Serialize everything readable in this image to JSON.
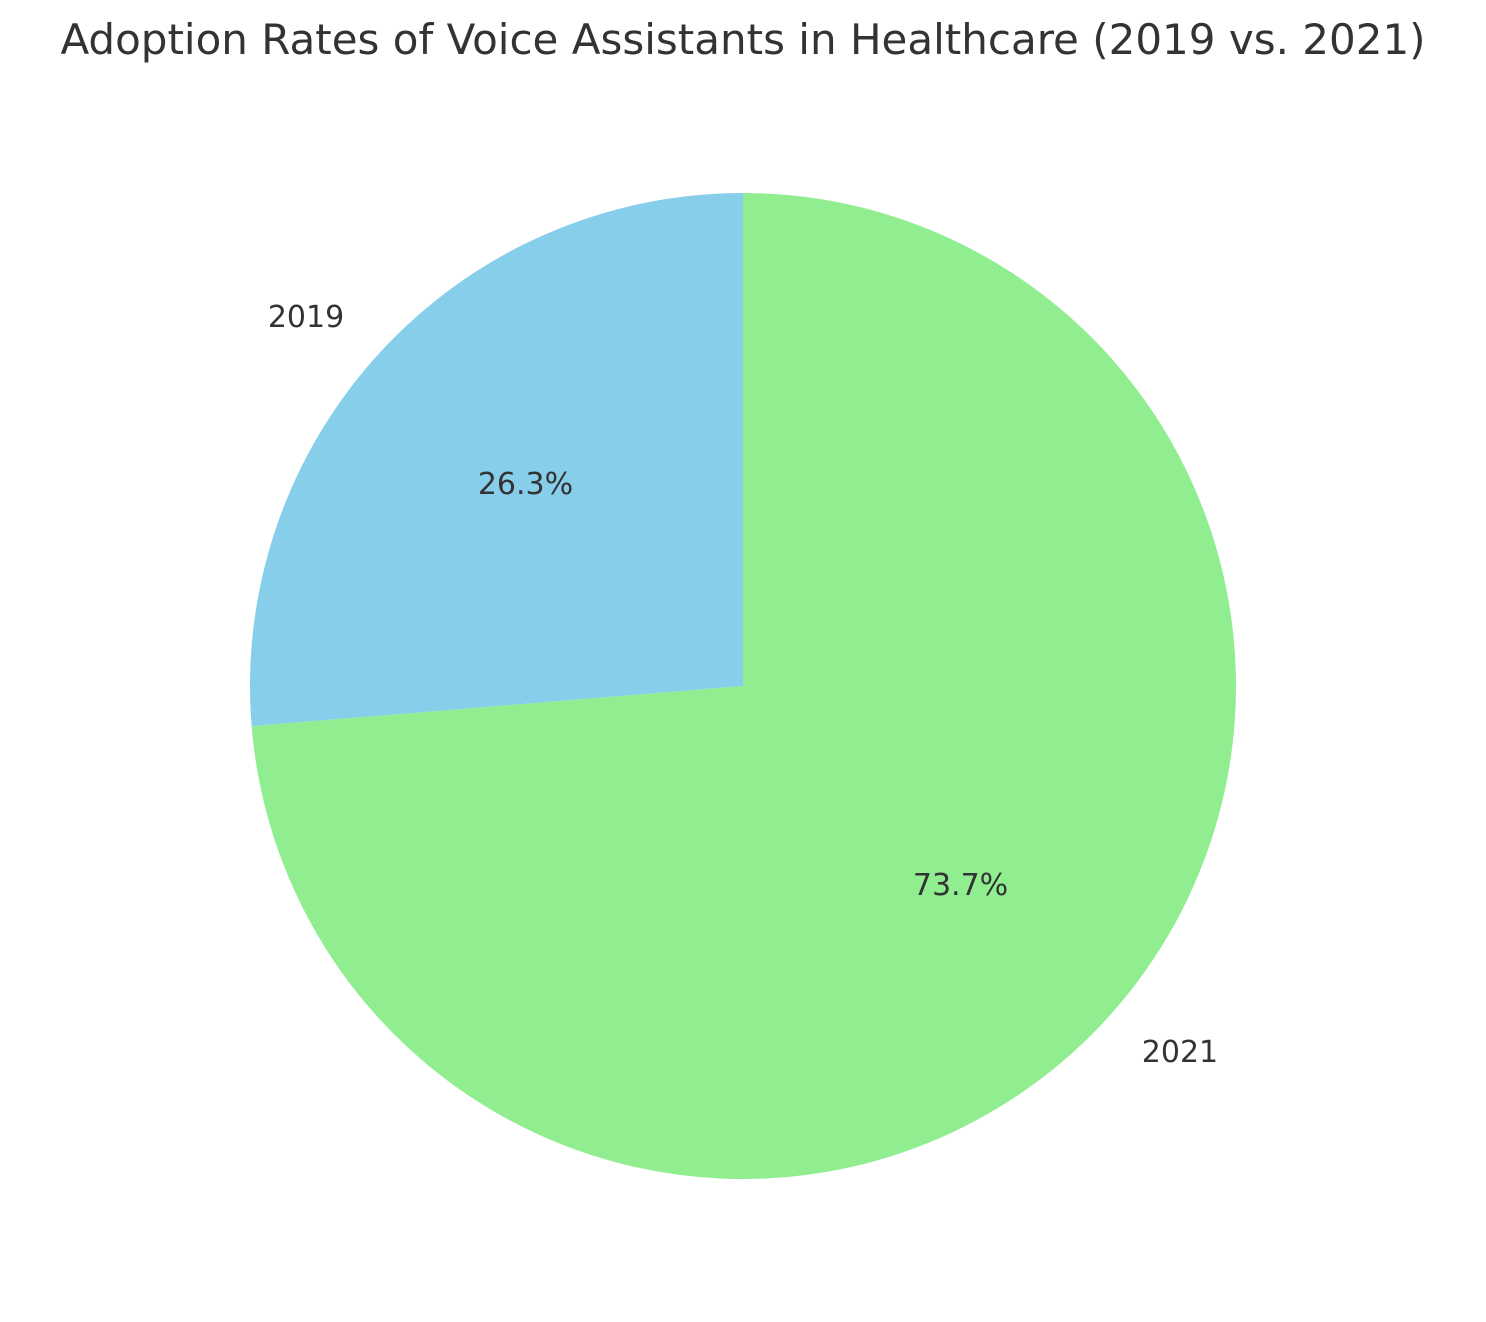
{
  "chart_data": {
    "type": "pie",
    "title": "Adoption Rates of Voice Assistants in Healthcare (2019 vs. 2021)",
    "categories": [
      "2019",
      "2021"
    ],
    "values": [
      26.3,
      73.7
    ],
    "value_labels": [
      "26.3%",
      "73.7%"
    ],
    "colors": [
      "#87CEEB",
      "#90EE90"
    ],
    "start_angle_deg": 90,
    "direction": "counterclockwise",
    "legend": "none"
  }
}
